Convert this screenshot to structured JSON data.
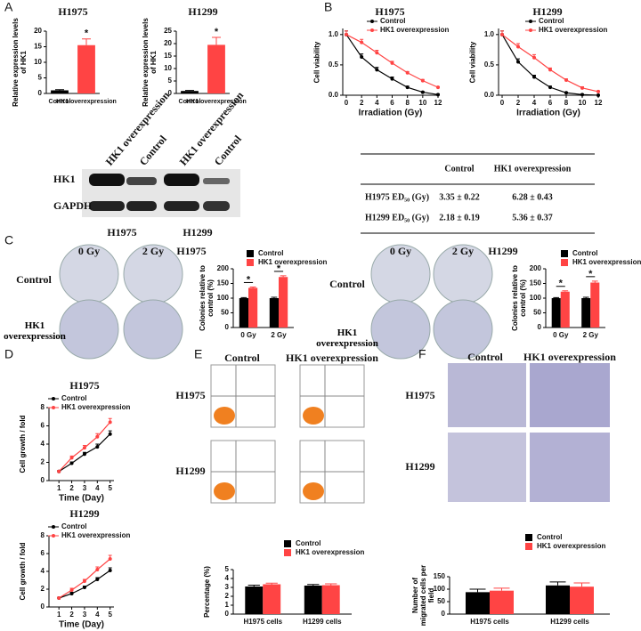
{
  "panels": [
    "A",
    "B",
    "C",
    "D",
    "E",
    "F"
  ],
  "blot": {
    "columns": [
      "HK1 overexpression",
      "Control",
      "HK1 overexpression",
      "Control"
    ],
    "rows": [
      "HK1",
      "GAPDH"
    ],
    "cell_lines": [
      "H1975",
      "H1299"
    ]
  },
  "ed50_table": {
    "header": [
      "Control",
      "HK1 overexpression"
    ],
    "rows": [
      [
        "H1975 ED₅₀ (Gy)",
        "3.35 ± 0.22",
        "6.28 ± 0.43"
      ],
      [
        "H1299 ED₅₀ (Gy)",
        "2.18 ± 0.19",
        "5.36 ± 0.37"
      ]
    ]
  },
  "colony_images": {
    "columns": [
      "0 Gy",
      "2 Gy"
    ],
    "rows": [
      "Control",
      "HK1 overexpression"
    ]
  },
  "flow_images": {
    "columns": [
      "Control",
      "HK1 overexpression"
    ],
    "rows": [
      "H1975",
      "H1299"
    ]
  },
  "migration_images": {
    "columns": [
      "Control",
      "HK1 overexpression"
    ],
    "rows": [
      "H1975",
      "H1299"
    ]
  },
  "chart_data": [
    {
      "type": "bar",
      "title": "H1975",
      "y_label": "Relative expression levels of HK1",
      "categories": [
        "Control",
        "HK1 overexpression"
      ],
      "values": [
        1,
        15.5
      ],
      "errors": [
        0.2,
        2
      ],
      "colors": [
        "#000000",
        "#ff4444"
      ],
      "significance": [
        null,
        "*"
      ],
      "ylim": [
        0,
        20
      ],
      "yticks": [
        0,
        5,
        10,
        15,
        20
      ]
    },
    {
      "type": "bar",
      "title": "H1299",
      "y_label": "Relative expression levels of HK1",
      "categories": [
        "Control",
        "HK1 overexpression"
      ],
      "values": [
        1,
        19.5
      ],
      "errors": [
        0.2,
        3
      ],
      "colors": [
        "#000000",
        "#ff4444"
      ],
      "significance": [
        null,
        "*"
      ],
      "ylim": [
        0,
        25
      ],
      "yticks": [
        0,
        5,
        10,
        15,
        20,
        25
      ]
    },
    {
      "type": "line",
      "title": "H1975",
      "x_label": "Irradiation (Gy)",
      "y_label": "Cell viability",
      "x": [
        0,
        2,
        4,
        6,
        8,
        10,
        12
      ],
      "xlim": [
        0,
        12
      ],
      "xticks": [
        0,
        2,
        4,
        6,
        8,
        10,
        12
      ],
      "ylim": [
        0,
        1.1
      ],
      "yticks": [
        {
          "value": 0,
          "label": "0.0"
        },
        {
          "value": 0.5,
          "label": "0.5"
        },
        {
          "value": 1,
          "label": "1.0"
        }
      ],
      "series": [
        {
          "name": "Control",
          "color": "#000000",
          "values": [
            1,
            0.63,
            0.42,
            0.27,
            0.13,
            0.05,
            0.01
          ],
          "errors": [
            0.06,
            0.05,
            0.04,
            0.03,
            0.02,
            0.01,
            0.01
          ]
        },
        {
          "name": "HK1 overexpression",
          "color": "#ff4444",
          "values": [
            1,
            0.87,
            0.7,
            0.53,
            0.37,
            0.24,
            0.13
          ],
          "errors": [
            0.06,
            0.05,
            0.04,
            0.03,
            0.02,
            0.02,
            0.01
          ]
        }
      ]
    },
    {
      "type": "line",
      "title": "H1299",
      "x_label": "Irradiation (Gy)",
      "y_label": "Cell viability",
      "x": [
        0,
        2,
        4,
        6,
        8,
        10,
        12
      ],
      "xlim": [
        0,
        12
      ],
      "xticks": [
        0,
        2,
        4,
        6,
        8,
        10,
        12
      ],
      "ylim": [
        0,
        1.1
      ],
      "yticks": [
        {
          "value": 0,
          "label": "0.0"
        },
        {
          "value": 0.5,
          "label": "0.5"
        },
        {
          "value": 1,
          "label": "1.0"
        }
      ],
      "series": [
        {
          "name": "Control",
          "color": "#000000",
          "values": [
            1,
            0.55,
            0.3,
            0.13,
            0.04,
            0.01,
            0
          ],
          "errors": [
            0.06,
            0.05,
            0.03,
            0.02,
            0.01,
            0.01,
            0.01
          ]
        },
        {
          "name": "HK1 overexpression",
          "color": "#ff4444",
          "values": [
            1,
            0.8,
            0.62,
            0.42,
            0.25,
            0.12,
            0.06
          ],
          "errors": [
            0.06,
            0.05,
            0.05,
            0.03,
            0.02,
            0.02,
            0.01
          ]
        }
      ]
    },
    {
      "type": "grouped_bar",
      "title": "H1975",
      "y_label": "Colonies relative to control (%)",
      "categories": [
        "0 Gy",
        "2 Gy"
      ],
      "significance": [
        "*",
        "*"
      ],
      "ylim": [
        0,
        200
      ],
      "yticks": [
        0,
        50,
        100,
        150,
        200
      ],
      "series": [
        {
          "name": "Control",
          "color": "#000000",
          "values": [
            100,
            100
          ],
          "errors": [
            2,
            3
          ]
        },
        {
          "name": "HK1 overexpression",
          "color": "#ff4444",
          "values": [
            135,
            172
          ],
          "errors": [
            3,
            4
          ]
        }
      ]
    },
    {
      "type": "grouped_bar",
      "title": "H1299",
      "y_label": "Colonies relative to control (%)",
      "categories": [
        "0 Gy",
        "2 Gy"
      ],
      "significance": [
        "*",
        "*"
      ],
      "ylim": [
        0,
        200
      ],
      "yticks": [
        0,
        50,
        100,
        150,
        200
      ],
      "series": [
        {
          "name": "Control",
          "color": "#000000",
          "values": [
            100,
            100
          ],
          "errors": [
            2,
            3
          ]
        },
        {
          "name": "HK1 overexpression",
          "color": "#ff4444",
          "values": [
            122,
            153
          ],
          "errors": [
            3,
            5
          ]
        }
      ]
    },
    {
      "type": "line",
      "title": "H1975",
      "x_label": "Time (Day)",
      "y_label": "Cell growth / fold",
      "x": [
        1,
        2,
        3,
        4,
        5
      ],
      "xlim": [
        0.5,
        5.3
      ],
      "xticks": [
        1,
        2,
        3,
        4,
        5
      ],
      "ylim": [
        0,
        8
      ],
      "yticks": [
        0,
        2,
        4,
        6,
        8
      ],
      "series": [
        {
          "name": "Control",
          "color": "#000000",
          "values": [
            1,
            1.9,
            2.9,
            3.7,
            5.1
          ],
          "errors": [
            0.1,
            0.15,
            0.2,
            0.3,
            0.35
          ]
        },
        {
          "name": "HK1 overexpression",
          "color": "#ff4444",
          "values": [
            1,
            2.5,
            3.6,
            4.8,
            6.4
          ],
          "errors": [
            0.1,
            0.2,
            0.25,
            0.35,
            0.4
          ]
        }
      ]
    },
    {
      "type": "line",
      "title": "H1299",
      "x_label": "Time (Day)",
      "y_label": "Cell growth / fold",
      "x": [
        1,
        2,
        3,
        4,
        5
      ],
      "xlim": [
        0.5,
        5.3
      ],
      "xticks": [
        1,
        2,
        3,
        4,
        5
      ],
      "ylim": [
        0,
        8
      ],
      "yticks": [
        0,
        2,
        4,
        6,
        8
      ],
      "series": [
        {
          "name": "Control",
          "color": "#000000",
          "values": [
            1,
            1.5,
            2.2,
            3.1,
            4.1
          ],
          "errors": [
            0.1,
            0.15,
            0.15,
            0.2,
            0.3
          ]
        },
        {
          "name": "HK1 overexpression",
          "color": "#ff4444",
          "values": [
            1,
            1.9,
            2.9,
            4.2,
            5.4
          ],
          "errors": [
            0.1,
            0.2,
            0.2,
            0.3,
            0.4
          ]
        }
      ]
    },
    {
      "type": "grouped_bar",
      "y_label": "Percentage (%)",
      "categories": [
        "H1975 cells",
        "H1299 cells"
      ],
      "ylim": [
        0,
        5
      ],
      "yticks": [
        0,
        1,
        2,
        3,
        4,
        5
      ],
      "series": [
        {
          "name": "Control",
          "color": "#000000",
          "values": [
            3.1,
            3.2
          ],
          "errors": [
            0.15,
            0.12
          ]
        },
        {
          "name": "HK1 overexpression",
          "color": "#ff4444",
          "values": [
            3.35,
            3.25
          ],
          "errors": [
            0.12,
            0.15
          ]
        }
      ]
    },
    {
      "type": "grouped_bar",
      "y_label": "Number of migrated cells per field",
      "categories": [
        "H1975 cells",
        "H1299 cells"
      ],
      "ylim": [
        0,
        150
      ],
      "yticks": [
        0,
        50,
        100,
        150
      ],
      "series": [
        {
          "name": "Control",
          "color": "#000000",
          "values": [
            88,
            115
          ],
          "errors": [
            12,
            14
          ]
        },
        {
          "name": "HK1 overexpression",
          "color": "#ff4444",
          "values": [
            94,
            110
          ],
          "errors": [
            10,
            15
          ]
        }
      ]
    }
  ]
}
